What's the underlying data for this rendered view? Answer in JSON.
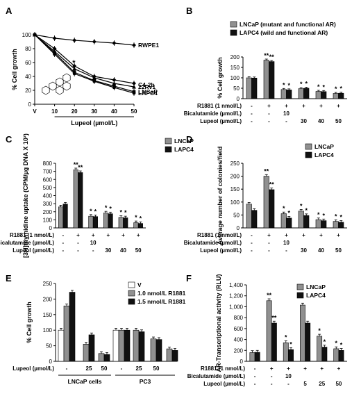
{
  "chart_data": [
    {
      "panel": "A",
      "type": "line",
      "x_ticks": [
        "V",
        "10",
        "20",
        "30",
        "40",
        "50"
      ],
      "xlabel": "Lupeol (µmol/L)",
      "ylabel": "% Cell growth",
      "ylim": [
        0,
        100
      ],
      "y_ticks": [
        "0",
        "20",
        "40",
        "60",
        "80",
        "100"
      ],
      "series": [
        {
          "name": "RWPE1",
          "values": [
            100,
            95,
            92,
            90,
            88,
            85
          ]
        },
        {
          "name": "C4-2b",
          "values": [
            100,
            80,
            55,
            40,
            35,
            30
          ]
        },
        {
          "name": "22Rv1",
          "values": [
            100,
            76,
            51,
            38,
            30,
            25
          ]
        },
        {
          "name": "LNCaP",
          "values": [
            100,
            74,
            46,
            34,
            26,
            18
          ]
        },
        {
          "name": "LAPC4",
          "values": [
            100,
            72,
            44,
            33,
            24,
            16
          ]
        }
      ],
      "annotation": "*"
    },
    {
      "panel": "B",
      "type": "bar",
      "ylabel": "% Cell growth",
      "ylim": [
        0,
        200
      ],
      "y_ticks": [
        "0",
        "50",
        "100",
        "150",
        "200"
      ],
      "legend": [
        "LNCaP (mutant and functional AR)",
        "LAPC4 (wild and functional AR)"
      ],
      "colors": [
        "#909090",
        "#111111"
      ],
      "series": [
        {
          "name": "LNCaP (mutant and functional AR)",
          "values": [
            100,
            185,
            44,
            48,
            35,
            25
          ],
          "marks": [
            "",
            "**",
            "*",
            "*",
            "*",
            "*"
          ]
        },
        {
          "name": "LAPC4 (wild and functional AR)",
          "values": [
            99,
            178,
            42,
            50,
            34,
            26
          ],
          "marks": [
            "",
            "**",
            "*",
            "*",
            "*",
            "*"
          ]
        }
      ],
      "treatments": [
        {
          "label": "R1881 (1 nmol/L)",
          "values": [
            "-",
            "+",
            "+",
            "+",
            "+",
            "+"
          ]
        },
        {
          "label": "Bicalutamide (µmol/L)",
          "values": [
            "-",
            "-",
            "10",
            "",
            "",
            ""
          ]
        },
        {
          "label": "Lupeol  (µmol/L)",
          "values": [
            "-",
            "-",
            "-",
            "30",
            "40",
            "50"
          ]
        }
      ]
    },
    {
      "panel": "C",
      "type": "bar",
      "ylabel": "[3H]thymidine uptake (CPM/µg DNA X 10²)",
      "ylim": [
        0,
        800
      ],
      "y_ticks": [
        "0",
        "100",
        "200",
        "300",
        "400",
        "500",
        "600",
        "700",
        "800"
      ],
      "legend": [
        "LNCaP",
        "LAPC4"
      ],
      "colors": [
        "#909090",
        "#111111"
      ],
      "series": [
        {
          "name": "LNCaP",
          "values": [
            260,
            720,
            145,
            185,
            130,
            65
          ],
          "marks": [
            "",
            "**",
            "*",
            "*",
            "*",
            "*"
          ]
        },
        {
          "name": "LAPC4",
          "values": [
            295,
            685,
            140,
            175,
            125,
            55
          ],
          "marks": [
            "",
            "**",
            "*",
            "*",
            "*",
            "*"
          ]
        }
      ],
      "treatments": [
        {
          "label": "R1881 (1 nmol/L)",
          "values": [
            "-",
            "+",
            "+",
            "+",
            "+",
            "+"
          ]
        },
        {
          "label": "Bicalutamide (µmol/L)",
          "values": [
            "-",
            "-",
            "10",
            "",
            "",
            ""
          ]
        },
        {
          "label": "Lupeol  (µmol/L)",
          "values": [
            "-",
            "-",
            "-",
            "30",
            "40",
            "50"
          ]
        }
      ]
    },
    {
      "panel": "D",
      "type": "bar",
      "ylabel": "Average number of colonies/field",
      "ylim": [
        0,
        250
      ],
      "y_ticks": [
        "0",
        "50",
        "100",
        "150",
        "200",
        "250"
      ],
      "legend": [
        "LNCaP",
        "LAPC4"
      ],
      "colors": [
        "#909090",
        "#111111"
      ],
      "series": [
        {
          "name": "LNCaP",
          "values": [
            92,
            200,
            55,
            65,
            32,
            25
          ],
          "marks": [
            "",
            "**",
            "*",
            "*",
            "*",
            "*"
          ]
        },
        {
          "name": "LAPC4",
          "values": [
            68,
            148,
            38,
            48,
            28,
            22
          ],
          "marks": [
            "",
            "**",
            "*",
            "*",
            "*",
            "*"
          ]
        }
      ],
      "treatments": [
        {
          "label": "R1881 (1 nmol/L)",
          "values": [
            "-",
            "+",
            "+",
            "+",
            "+",
            "+"
          ]
        },
        {
          "label": "Bicalutamide (µmol/L)",
          "values": [
            "-",
            "-",
            "10",
            "",
            "",
            ""
          ]
        },
        {
          "label": "Lupeol  (µmol/L)",
          "values": [
            "-",
            "-",
            "-",
            "30",
            "40",
            "50"
          ]
        }
      ]
    },
    {
      "panel": "E",
      "type": "bar",
      "ylabel": "% Cell growth",
      "ylim": [
        0,
        250
      ],
      "y_ticks": [
        "0",
        "50",
        "100",
        "150",
        "200",
        "250"
      ],
      "legend": [
        "V",
        "1.0 nmol/L R1881",
        "1.5 nmol/L R1881"
      ],
      "colors": [
        "#ffffff",
        "#909090",
        "#111111"
      ],
      "series": [
        {
          "name": "V",
          "values": [
            100,
            55,
            25,
            100,
            72,
            40
          ]
        },
        {
          "name": "1.0 nmol/L R1881",
          "values": [
            100,
            178,
            85,
            100,
            100,
            40
          ]
        },
        {
          "name": "1.5 nmol/L R1881",
          "values": [
            100,
            222,
            22,
            100,
            95,
            35
          ]
        }
      ],
      "groups": [
        {
          "treatment": "-",
          "cell": "LNCaP cells",
          "bars": [
            100,
            178,
            222
          ]
        },
        {
          "treatment": "25",
          "cell": "LNCaP cells",
          "bars": [
            55,
            85
          ]
        },
        {
          "treatment": "50",
          "cell": "LNCaP cells",
          "bars": [
            25,
            22
          ]
        },
        {
          "treatment": "-",
          "cell": "PC3",
          "bars": [
            100,
            100,
            100
          ]
        },
        {
          "treatment": "25",
          "cell": "PC3",
          "bars": [
            100,
            95
          ]
        },
        {
          "treatment": "50",
          "cell": "PC3",
          "bars": [
            72,
            70
          ]
        },
        {
          "treatment": "",
          "cell": "PC3",
          "bars": [
            40,
            35
          ]
        }
      ],
      "treatment_label": "Lupeol (µmol/L)",
      "cell_labels": [
        "LNCaP cells",
        "PC3"
      ]
    },
    {
      "panel": "F",
      "type": "bar",
      "ylabel": "AR-Transcriptional activity (RLU)",
      "ylim": [
        0,
        1400
      ],
      "y_ticks": [
        "0",
        "200",
        "400",
        "600",
        "800",
        "1,000",
        "1,200",
        "1,400"
      ],
      "legend": [
        "LNCaP",
        "LAPC4"
      ],
      "colors": [
        "#909090",
        "#111111"
      ],
      "series": [
        {
          "name": "LNCaP",
          "values": [
            160,
            1110,
            340,
            1030,
            460,
            230
          ],
          "marks": [
            "",
            "**",
            "*",
            "",
            "*",
            "*"
          ]
        },
        {
          "name": "LAPC4",
          "values": [
            165,
            700,
            215,
            700,
            260,
            200
          ],
          "marks": [
            "",
            "**",
            "*",
            "",
            "*",
            "*"
          ]
        }
      ],
      "treatments": [
        {
          "label": "R1881 (1 nmol/L)",
          "values": [
            "-",
            "+",
            "+",
            "+",
            "+",
            "+"
          ]
        },
        {
          "label": "Bicalutamide (µmol/L)",
          "values": [
            "-",
            "-",
            "10",
            "",
            "",
            ""
          ]
        },
        {
          "label": "Lupeol  (µmol/L)",
          "values": [
            "-",
            "-",
            "-",
            "5",
            "25",
            "50"
          ]
        }
      ]
    }
  ]
}
